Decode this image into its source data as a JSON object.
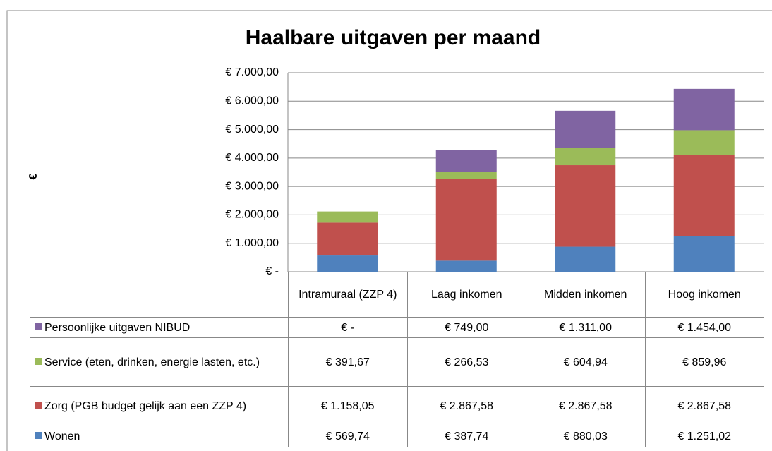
{
  "chart_data": {
    "type": "stacked_bar",
    "title": "Haalbare uitgaven per maand",
    "y_label": "€",
    "categories": [
      "Intramuraal (ZZP 4)",
      "Laag inkomen",
      "Midden inkomen",
      "Hoog inkomen"
    ],
    "series": [
      {
        "name": "Wonen",
        "color": "#4f81bd",
        "values": [
          569.74,
          387.74,
          880.03,
          1251.02
        ],
        "value_labels": [
          "€ 569,74",
          "€ 387,74",
          "€ 880,03",
          "€ 1.251,02"
        ]
      },
      {
        "name": "Zorg (PGB budget gelijk aan een ZZP 4)",
        "color": "#c0504d",
        "values": [
          1158.05,
          2867.58,
          2867.58,
          2867.58
        ],
        "value_labels": [
          "€ 1.158,05",
          "€ 2.867,58",
          "€ 2.867,58",
          "€ 2.867,58"
        ]
      },
      {
        "name": "Service (eten, drinken, energie lasten, etc.)",
        "color": "#9bbb59",
        "values": [
          391.67,
          266.53,
          604.94,
          859.96
        ],
        "value_labels": [
          "€ 391,67",
          "€ 266,53",
          "€ 604,94",
          "€ 859,96"
        ]
      },
      {
        "name": "Persoonlijke uitgaven NIBUD",
        "color": "#8064a2",
        "values": [
          0,
          749,
          1311,
          1454
        ],
        "value_labels": [
          "€ -",
          "€ 749,00",
          "€ 1.311,00",
          "€ 1.454,00"
        ]
      }
    ],
    "ylim": [
      0,
      7000
    ],
    "yticks": [
      {
        "value": 0,
        "label": "€ -"
      },
      {
        "value": 1000,
        "label": "€ 1.000,00"
      },
      {
        "value": 2000,
        "label": "€ 2.000,00"
      },
      {
        "value": 3000,
        "label": "€ 3.000,00"
      },
      {
        "value": 4000,
        "label": "€ 4.000,00"
      },
      {
        "value": 5000,
        "label": "€ 5.000,00"
      },
      {
        "value": 6000,
        "label": "€ 6.000,00"
      },
      {
        "value": 7000,
        "label": "€ 7.000,00"
      }
    ],
    "grid": true
  }
}
